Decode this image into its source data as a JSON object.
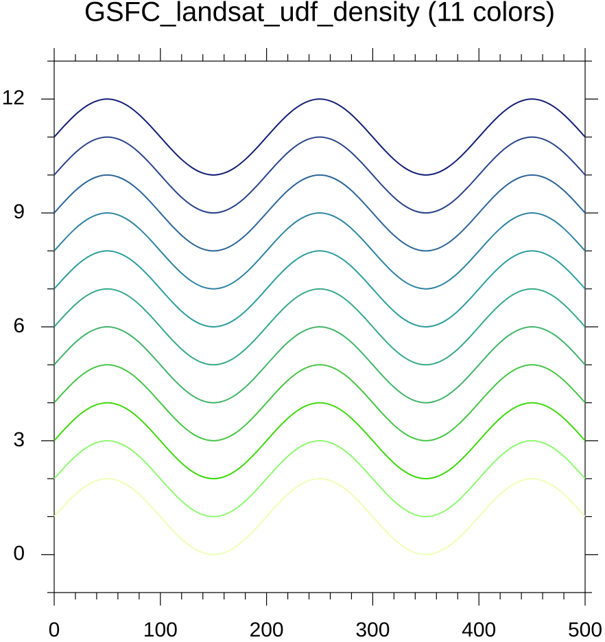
{
  "chart_data": {
    "type": "line",
    "title": "GSFC_landsat_udf_density (11 colors)",
    "x": [
      0,
      10,
      20,
      30,
      40,
      50,
      60,
      70,
      80,
      90,
      100,
      110,
      120,
      130,
      140,
      150,
      160,
      170,
      180,
      190,
      200,
      210,
      220,
      230,
      240,
      250,
      260,
      270,
      280,
      290,
      300,
      310,
      320,
      330,
      340,
      350,
      360,
      370,
      380,
      390,
      400,
      410,
      420,
      430,
      440,
      450,
      460,
      470,
      480,
      490,
      500
    ],
    "series": [
      {
        "color": "#eeffb4",
        "values": [
          1,
          1.31,
          1.59,
          1.81,
          1.95,
          2,
          1.95,
          1.81,
          1.59,
          1.31,
          1,
          0.69,
          0.41,
          0.19,
          0.05,
          0,
          0.05,
          0.19,
          0.41,
          0.69,
          1,
          1.31,
          1.59,
          1.81,
          1.95,
          2,
          1.95,
          1.81,
          1.59,
          1.31,
          1,
          0.69,
          0.41,
          0.19,
          0.05,
          0,
          0.05,
          0.19,
          0.41,
          0.69,
          1,
          1.31,
          1.59,
          1.81,
          1.95,
          2,
          1.95,
          1.81,
          1.59,
          1.31,
          1
        ]
      },
      {
        "color": "#8ef870",
        "values": [
          2,
          2.31,
          2.59,
          2.81,
          2.95,
          3,
          2.95,
          2.81,
          2.59,
          2.31,
          2,
          1.69,
          1.41,
          1.19,
          1.05,
          1,
          1.05,
          1.19,
          1.41,
          1.69,
          2,
          2.31,
          2.59,
          2.81,
          2.95,
          3,
          2.95,
          2.81,
          2.59,
          2.31,
          2,
          1.69,
          1.41,
          1.19,
          1.05,
          1,
          1.05,
          1.19,
          1.41,
          1.69,
          2,
          2.31,
          2.59,
          2.81,
          2.95,
          3,
          2.95,
          2.81,
          2.59,
          2.31,
          2
        ]
      },
      {
        "color": "#3cd80a",
        "values": [
          3,
          3.31,
          3.59,
          3.81,
          3.95,
          4,
          3.95,
          3.81,
          3.59,
          3.31,
          3,
          2.69,
          2.41,
          2.19,
          2.05,
          2,
          2.05,
          2.19,
          2.41,
          2.69,
          3,
          3.31,
          3.59,
          3.81,
          3.95,
          4,
          3.95,
          3.81,
          3.59,
          3.31,
          3,
          2.69,
          2.41,
          2.19,
          2.05,
          2,
          2.05,
          2.19,
          2.41,
          2.69,
          3,
          3.31,
          3.59,
          3.81,
          3.95,
          4,
          3.95,
          3.81,
          3.59,
          3.31,
          3
        ]
      },
      {
        "color": "#44c444",
        "values": [
          4,
          4.31,
          4.59,
          4.81,
          4.95,
          5,
          4.95,
          4.81,
          4.59,
          4.31,
          4,
          3.69,
          3.41,
          3.19,
          3.05,
          3,
          3.05,
          3.19,
          3.41,
          3.69,
          4,
          4.31,
          4.59,
          4.81,
          4.95,
          5,
          4.95,
          4.81,
          4.59,
          4.31,
          4,
          3.69,
          3.41,
          3.19,
          3.05,
          3,
          3.05,
          3.19,
          3.41,
          3.69,
          4,
          4.31,
          4.59,
          4.81,
          4.95,
          5,
          4.95,
          4.81,
          4.59,
          4.31,
          4
        ]
      },
      {
        "color": "#40b468",
        "values": [
          5,
          5.31,
          5.59,
          5.81,
          5.95,
          6,
          5.95,
          5.81,
          5.59,
          5.31,
          5,
          4.69,
          4.41,
          4.19,
          4.05,
          4,
          4.05,
          4.19,
          4.41,
          4.69,
          5,
          5.31,
          5.59,
          5.81,
          5.95,
          6,
          5.95,
          5.81,
          5.59,
          5.31,
          5,
          4.69,
          4.41,
          4.19,
          4.05,
          4,
          4.05,
          4.19,
          4.41,
          4.69,
          5,
          5.31,
          5.59,
          5.81,
          5.95,
          6,
          5.95,
          5.81,
          5.59,
          5.31,
          5
        ]
      },
      {
        "color": "#34a884",
        "values": [
          6,
          6.31,
          6.59,
          6.81,
          6.95,
          7,
          6.95,
          6.81,
          6.59,
          6.31,
          6,
          5.69,
          5.41,
          5.19,
          5.05,
          5,
          5.05,
          5.19,
          5.41,
          5.69,
          6,
          6.31,
          6.59,
          6.81,
          6.95,
          7,
          6.95,
          6.81,
          6.59,
          6.31,
          6,
          5.69,
          5.41,
          5.19,
          5.05,
          5,
          5.05,
          5.19,
          5.41,
          5.69,
          6,
          6.31,
          6.59,
          6.81,
          6.95,
          7,
          6.95,
          6.81,
          6.59,
          6.31,
          6
        ]
      },
      {
        "color": "#2a9c9c",
        "values": [
          7,
          7.31,
          7.59,
          7.81,
          7.95,
          8,
          7.95,
          7.81,
          7.59,
          7.31,
          7,
          6.69,
          6.41,
          6.19,
          6.05,
          6,
          6.05,
          6.19,
          6.41,
          6.69,
          7,
          7.31,
          7.59,
          7.81,
          7.95,
          8,
          7.95,
          7.81,
          7.59,
          7.31,
          7,
          6.69,
          6.41,
          6.19,
          6.05,
          6,
          6.05,
          6.19,
          6.41,
          6.69,
          7,
          7.31,
          7.59,
          7.81,
          7.95,
          8,
          7.95,
          7.81,
          7.59,
          7.31,
          7
        ]
      },
      {
        "color": "#2a82a0",
        "values": [
          8,
          8.31,
          8.59,
          8.81,
          8.95,
          9,
          8.95,
          8.81,
          8.59,
          8.31,
          8,
          7.69,
          7.41,
          7.19,
          7.05,
          7,
          7.05,
          7.19,
          7.41,
          7.69,
          8,
          8.31,
          8.59,
          8.81,
          8.95,
          9,
          8.95,
          8.81,
          8.59,
          8.31,
          8,
          7.69,
          7.41,
          7.19,
          7.05,
          7,
          7.05,
          7.19,
          7.41,
          7.69,
          8,
          8.31,
          8.59,
          8.81,
          8.95,
          9,
          8.95,
          8.81,
          8.59,
          8.31,
          8
        ]
      },
      {
        "color": "#2a6498",
        "values": [
          9,
          9.31,
          9.59,
          9.81,
          9.95,
          10,
          9.95,
          9.81,
          9.59,
          9.31,
          9,
          8.69,
          8.41,
          8.19,
          8.05,
          8,
          8.05,
          8.19,
          8.41,
          8.69,
          9,
          9.31,
          9.59,
          9.81,
          9.95,
          10,
          9.95,
          9.81,
          9.59,
          9.31,
          9,
          8.69,
          8.41,
          8.19,
          8.05,
          8,
          8.05,
          8.19,
          8.41,
          8.69,
          9,
          9.31,
          9.59,
          9.81,
          9.95,
          10,
          9.95,
          9.81,
          9.59,
          9.31,
          9
        ]
      },
      {
        "color": "#28428a",
        "values": [
          10,
          10.31,
          10.59,
          10.81,
          10.95,
          11,
          10.95,
          10.81,
          10.59,
          10.31,
          10,
          9.69,
          9.41,
          9.19,
          9.05,
          9,
          9.05,
          9.19,
          9.41,
          9.69,
          10,
          10.31,
          10.59,
          10.81,
          10.95,
          11,
          10.95,
          10.81,
          10.59,
          10.31,
          10,
          9.69,
          9.41,
          9.19,
          9.05,
          9,
          9.05,
          9.19,
          9.41,
          9.69,
          10,
          10.31,
          10.59,
          10.81,
          10.95,
          11,
          10.95,
          10.81,
          10.59,
          10.31,
          10
        ]
      },
      {
        "color": "#101c72",
        "values": [
          11,
          11.31,
          11.59,
          11.81,
          11.95,
          12,
          11.95,
          11.81,
          11.59,
          11.31,
          11,
          10.69,
          10.41,
          10.19,
          10.05,
          10,
          10.05,
          10.19,
          10.41,
          10.69,
          11,
          11.31,
          11.59,
          11.81,
          11.95,
          12,
          11.95,
          11.81,
          11.59,
          11.31,
          11,
          10.69,
          10.41,
          10.19,
          10.05,
          10,
          10.05,
          10.19,
          10.41,
          10.69,
          11,
          11.31,
          11.59,
          11.81,
          11.95,
          12,
          11.95,
          11.81,
          11.59,
          11.31,
          11
        ]
      }
    ],
    "xlim": [
      0,
      500
    ],
    "ylim": [
      -1,
      13
    ],
    "xticks": [
      0,
      100,
      200,
      300,
      400,
      500
    ],
    "yticks": [
      0,
      3,
      6,
      9,
      12
    ],
    "x_minor_ticks": [
      20,
      40,
      60,
      80,
      120,
      140,
      160,
      180,
      220,
      240,
      260,
      280,
      320,
      340,
      360,
      380,
      420,
      440,
      460,
      480
    ],
    "y_minor_ticks": [
      -1,
      1,
      2,
      4,
      5,
      7,
      8,
      10,
      11,
      13
    ]
  }
}
